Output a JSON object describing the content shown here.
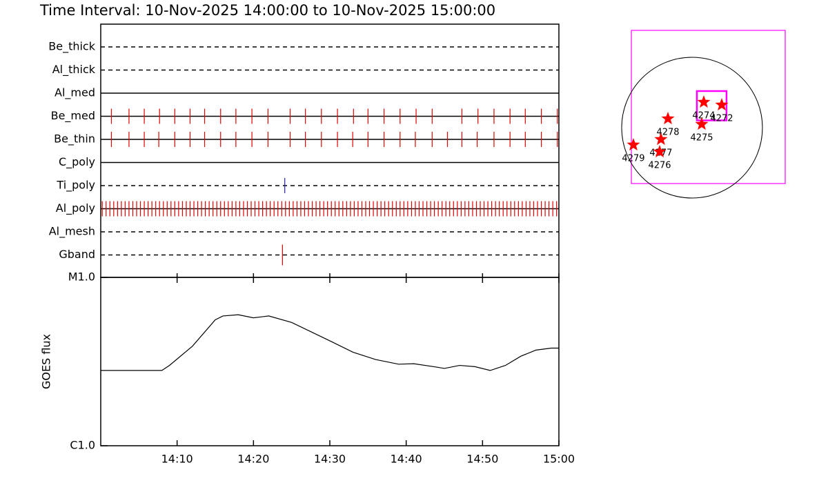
{
  "title": "Time Interval: 10-Nov-2025 14:00:00 to 10-Nov-2025 15:00:00",
  "chart_data": [
    {
      "type": "timeline",
      "xlim": [
        0,
        60
      ],
      "filters": [
        {
          "name": "Be_thick",
          "line": "dashed",
          "color": "#e00000",
          "times": []
        },
        {
          "name": "Al_thick",
          "line": "dashed",
          "color": "#e00000",
          "times": []
        },
        {
          "name": "Al_med",
          "line": "solid",
          "color": "#e00000",
          "times": []
        },
        {
          "name": "Be_med",
          "line": "solid",
          "color": "#e00000",
          "times": [
            1.4,
            3.7,
            5.7,
            7.7,
            9.7,
            11.7,
            13.6,
            15.7,
            17.7,
            19.8,
            21.9,
            24.8,
            26.8,
            28.9,
            31.0,
            33.1,
            35.0,
            37.1,
            39.2,
            41.3,
            43.4,
            47.3,
            49.4,
            51.5,
            53.6,
            55.6,
            57.7,
            59.8
          ]
        },
        {
          "name": "Be_thin",
          "line": "solid",
          "color": "#e00000",
          "times": [
            1.4,
            3.7,
            5.7,
            7.6,
            9.7,
            11.7,
            13.6,
            15.7,
            17.7,
            19.8,
            21.9,
            24.8,
            26.8,
            28.9,
            31.0,
            33.0,
            35.0,
            37.1,
            39.2,
            41.2,
            43.4,
            45.4,
            47.3,
            49.3,
            51.5,
            53.6,
            55.6,
            57.7,
            59.8
          ]
        },
        {
          "name": "C_poly",
          "line": "solid",
          "color": "#e00000",
          "times": []
        },
        {
          "name": "Ti_poly",
          "line": "dashed",
          "color": "#2020a0",
          "times": [
            24.1
          ]
        },
        {
          "name": "Al_poly",
          "line": "solid",
          "color": "#e00000",
          "times": [
            0.2,
            0.7,
            1.2,
            1.7,
            2.2,
            2.7,
            3.2,
            3.7,
            4.2,
            4.7,
            5.2,
            5.7,
            6.2,
            6.7,
            7.2,
            7.7,
            8.2,
            8.7,
            9.2,
            9.7,
            10.2,
            10.7,
            11.2,
            11.7,
            12.2,
            12.7,
            13.2,
            13.7,
            14.2,
            14.7,
            15.2,
            15.7,
            16.2,
            16.7,
            17.2,
            17.7,
            18.2,
            18.7,
            19.2,
            19.7,
            20.2,
            20.7,
            21.2,
            21.7,
            22.2,
            22.7,
            23.2,
            23.7,
            24.2,
            24.7,
            25.2,
            25.7,
            26.2,
            26.7,
            27.2,
            27.7,
            28.2,
            28.7,
            29.2,
            29.7,
            30.2,
            30.7,
            31.2,
            31.7,
            32.2,
            32.7,
            33.2,
            33.7,
            34.2,
            34.7,
            35.2,
            35.7,
            36.2,
            36.7,
            37.2,
            37.7,
            38.2,
            38.7,
            39.2,
            39.7,
            40.2,
            40.7,
            41.2,
            41.7,
            42.2,
            42.7,
            43.2,
            43.7,
            44.2,
            44.7,
            45.2,
            45.7,
            46.2,
            46.7,
            47.2,
            47.7,
            48.2,
            48.7,
            49.2,
            49.7,
            50.2,
            50.7,
            51.2,
            51.7,
            52.2,
            52.7,
            53.2,
            53.7,
            54.2,
            54.7,
            55.2,
            55.7,
            56.2,
            56.7,
            57.2,
            57.7,
            58.2,
            58.7,
            59.2,
            59.7
          ]
        },
        {
          "name": "Al_mesh",
          "line": "dashed",
          "color": "#e00000",
          "times": []
        },
        {
          "name": "Gband",
          "line": "dashed",
          "color": "#e00000",
          "times": [
            23.8
          ]
        }
      ]
    },
    {
      "type": "line",
      "ylabel": "GOES flux",
      "log_y": true,
      "x": [
        0,
        8,
        9,
        12,
        15,
        16,
        18,
        20,
        22,
        25,
        30,
        33,
        36,
        39,
        41,
        44,
        45,
        47,
        49,
        51,
        53,
        55,
        57,
        59,
        60
      ],
      "series": [
        {
          "color": "#000000",
          "values": [
            2.8e-06,
            2.8e-06,
            3e-06,
            3.9e-06,
            5.6e-06,
            5.9e-06,
            6e-06,
            5.75e-06,
            5.9e-06,
            5.4e-06,
            4.2e-06,
            3.6e-06,
            3.25e-06,
            3.05e-06,
            3.07e-06,
            2.93e-06,
            2.88e-06,
            3e-06,
            2.95e-06,
            2.8e-06,
            3e-06,
            3.4e-06,
            3.7e-06,
            3.8e-06,
            3.8e-06
          ]
        }
      ],
      "xlim": [
        0,
        60
      ],
      "xticks": [
        {
          "value": 10,
          "label": "14:10"
        },
        {
          "value": 20,
          "label": "14:20"
        },
        {
          "value": 30,
          "label": "14:30"
        },
        {
          "value": 40,
          "label": "14:40"
        },
        {
          "value": 50,
          "label": "14:50"
        },
        {
          "value": 60,
          "label": "15:00"
        }
      ],
      "ylim": [
        1e-06,
        1e-05
      ],
      "yticks": [
        {
          "value": 1e-06,
          "label": "C1.0"
        },
        {
          "value": 1e-05,
          "label": "M1.0"
        }
      ]
    },
    {
      "type": "map",
      "xlim": [
        -828,
        1271
      ],
      "ylim": [
        -762,
        1327
      ],
      "disk_radius": 960,
      "box_color": "#ff00ff",
      "color": "#ff0000",
      "fov": {
        "x": [
          66,
          470
        ],
        "y": [
          99,
          499
        ]
      },
      "points": {
        "x": [
          160,
          405,
          132,
          -329,
          -424,
          -442,
          -800
        ],
        "y": [
          348,
          310,
          47,
          122,
          -160,
          -329,
          -235
        ],
        "labels": [
          "4274",
          "4272",
          "4275",
          "4278",
          "4277",
          "4276",
          "4279"
        ]
      }
    }
  ]
}
